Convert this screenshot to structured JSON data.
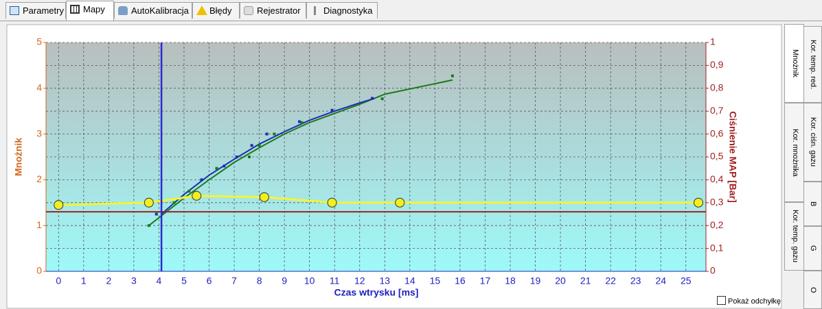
{
  "tabs": [
    "Parametry",
    "Mapy",
    "AutoKalibracja",
    "Błędy",
    "Rejestrator",
    "Diagnostyka"
  ],
  "side_tabs": [
    "Mnożnik",
    "Kor. temp. red.",
    "Kor. ciśn. gazu",
    "Kor. mnożnika",
    "B",
    "G",
    "Kor. temp. gazu",
    "O"
  ],
  "checkbox_label": "Pokaż odchyłkę",
  "chart_data": {
    "type": "line",
    "x_label": "Czas wtrysku [ms]",
    "y_label": "Mnożnik",
    "y2_label": "Ciśnienie MAP [Bar]",
    "xlim": [
      -0.5,
      25.8
    ],
    "xticks": [
      0,
      1,
      2,
      3,
      4,
      5,
      6,
      7,
      8,
      9,
      10,
      11,
      12,
      13,
      14,
      15,
      16,
      17,
      18,
      19,
      20,
      21,
      22,
      23,
      24,
      25
    ],
    "ylim": [
      0,
      5
    ],
    "yticks": [
      0,
      1,
      2,
      3,
      4,
      5
    ],
    "y2lim": [
      0,
      1
    ],
    "y2ticks": [
      0,
      {
        "value": 0.1,
        "label": "0,1"
      },
      {
        "value": 0.2,
        "label": "0,2"
      },
      {
        "value": 0.3,
        "label": "0,3"
      },
      {
        "value": 0.4,
        "label": "0,4"
      },
      {
        "value": 0.5,
        "label": "0,5"
      },
      {
        "value": 0.6,
        "label": "0,6"
      },
      {
        "value": 0.7,
        "label": "0,7"
      },
      {
        "value": 0.8,
        "label": "0,8"
      },
      {
        "value": 0.9,
        "label": "0,9"
      },
      1
    ],
    "grid": true,
    "cursor_x": 4.1,
    "cursor_color": "#2a2ad0",
    "series": [
      {
        "style": "line",
        "color": "#1a7a1a",
        "x": [
          3.6,
          5,
          6,
          7,
          8,
          9,
          10,
          11,
          12,
          13,
          15.7
        ],
        "values": [
          1.0,
          1.6,
          2.0,
          2.38,
          2.7,
          3.0,
          3.25,
          3.45,
          3.65,
          3.87,
          4.18
        ]
      },
      {
        "style": "line",
        "color": "#1b2fb0",
        "x": [
          4.1,
          5,
          6,
          7,
          8,
          9,
          10,
          11,
          12,
          12.6
        ],
        "values": [
          1.25,
          1.68,
          2.1,
          2.45,
          2.78,
          3.05,
          3.3,
          3.5,
          3.68,
          3.78
        ]
      },
      {
        "style": "points",
        "color": "#1b2fb0",
        "x": [
          3.9,
          5.7,
          6.6,
          7.1,
          7.7,
          8.3,
          9.6,
          10.9,
          12.5
        ],
        "values": [
          1.25,
          2.0,
          2.3,
          2.5,
          2.75,
          3.0,
          3.27,
          3.52,
          3.78
        ]
      },
      {
        "style": "points",
        "color": "#1a7a1a",
        "x": [
          3.6,
          4.6,
          5.2,
          6.3,
          7.6,
          8.0,
          8.6,
          9.7,
          12.9,
          15.7
        ],
        "values": [
          1.0,
          1.5,
          1.75,
          2.25,
          2.5,
          2.75,
          3.0,
          3.25,
          3.77,
          4.27
        ]
      },
      {
        "style": "line",
        "color": "#a02020",
        "x": [
          -0.5,
          25.8
        ],
        "values": [
          1.3,
          1.3
        ]
      },
      {
        "style": "line-markers",
        "color": "#f5f530",
        "x": [
          0,
          3.6,
          5.5,
          8.2,
          10.9,
          13.6,
          25.5
        ],
        "values": [
          1.45,
          1.5,
          1.65,
          1.62,
          1.5,
          1.5,
          1.5
        ]
      }
    ]
  }
}
